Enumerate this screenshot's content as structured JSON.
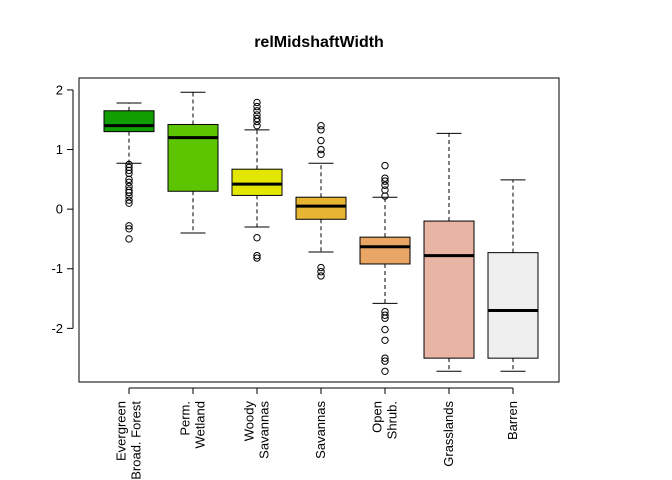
{
  "chart_data": {
    "type": "box",
    "title": "relMidshaftWidth",
    "xlabel": "",
    "ylabel": "",
    "ylim": [
      -2.9,
      2.2
    ],
    "yticks": [
      2,
      1,
      0,
      -1,
      -2
    ],
    "ytick_labels": [
      "2",
      "1",
      "0",
      "-1",
      "-2"
    ],
    "grid": false,
    "legend": "none",
    "categories": [
      {
        "lines": [
          "Evergreen",
          "Broad. Forest"
        ],
        "color": "#119e00",
        "min": 0.77,
        "q1": 1.3,
        "median": 1.4,
        "q3": 1.65,
        "max": 1.78,
        "outliers": [
          0.75,
          0.7,
          0.65,
          0.6,
          0.5,
          0.45,
          0.38,
          0.32,
          0.28,
          0.22,
          0.15,
          0.1,
          -0.28,
          -0.33,
          -0.5
        ]
      },
      {
        "lines": [
          "Perm.",
          "Wetland"
        ],
        "color": "#5dc400",
        "min": -0.4,
        "q1": 0.3,
        "median": 1.2,
        "q3": 1.42,
        "max": 1.96,
        "outliers": []
      },
      {
        "lines": [
          "Woody",
          "Savannas"
        ],
        "color": "#e3e600",
        "min": -0.3,
        "q1": 0.23,
        "median": 0.42,
        "q3": 0.67,
        "max": 1.33,
        "outliers": [
          1.4,
          1.47,
          1.52,
          1.58,
          1.65,
          1.72,
          1.79,
          -0.48,
          -0.78,
          -0.82
        ]
      },
      {
        "lines": [
          "Savannas"
        ],
        "color": "#e8b532",
        "min": -0.72,
        "q1": -0.17,
        "median": 0.05,
        "q3": 0.2,
        "max": 0.77,
        "outliers": [
          0.92,
          1.0,
          1.15,
          1.33,
          1.4,
          -0.98,
          -1.05,
          -1.12
        ]
      },
      {
        "lines": [
          "Open",
          "Shrub."
        ],
        "color": "#eaa664",
        "min": -1.58,
        "q1": -0.92,
        "median": -0.63,
        "q3": -0.47,
        "max": 0.2,
        "outliers": [
          0.22,
          0.32,
          0.4,
          0.47,
          0.52,
          0.73,
          -1.72,
          -1.78,
          -1.83,
          -2.02,
          -2.2,
          -2.5,
          -2.55,
          -2.72
        ]
      },
      {
        "lines": [
          "Grasslands"
        ],
        "color": "#e8b4a4",
        "min": -2.72,
        "q1": -2.5,
        "median": -0.78,
        "q3": -0.2,
        "max": 1.27,
        "outliers": []
      },
      {
        "lines": [
          "Barren"
        ],
        "color": "#efefef",
        "min": -2.72,
        "q1": -2.5,
        "median": -1.7,
        "q3": -0.73,
        "max": 0.49,
        "outliers": []
      }
    ]
  }
}
